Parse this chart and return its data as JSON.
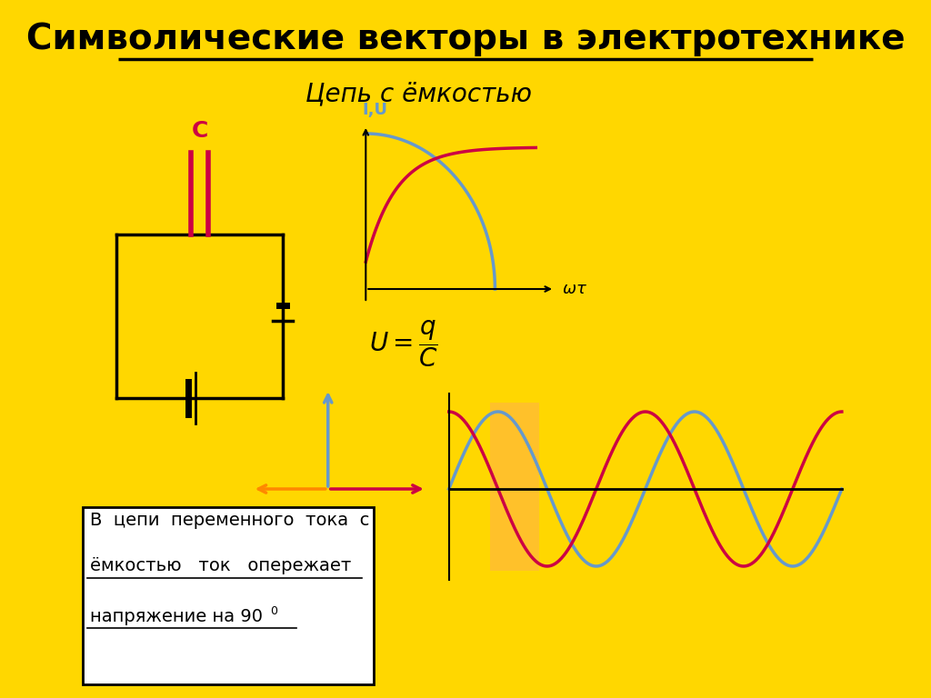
{
  "bg_color": "#FFD700",
  "title": "Символические векторы в электротехнике",
  "title_fontsize": 28,
  "subtitle": "Цепь с ёмкостью",
  "subtitle_fontsize": 20,
  "bottom_text_line1": "В  цепи  переменного  тока  с",
  "bottom_text_line2": "ёмкостью   ток   опережает",
  "bottom_text_line3": "напряжение на 90",
  "bottom_text_superscript": "0",
  "label_C": "C",
  "label_IU": "I,U",
  "label_wt": "$\\omega\\tau$",
  "circuit_color": "#000000",
  "capacitor_color": "#CC0044",
  "battery_color": "#000000",
  "wave_color_current": "#CC0044",
  "wave_color_voltage": "#6699CC",
  "arrow_color_up": "#6699CC",
  "arrow_color_right": "#CC0044",
  "arrow_color_left": "#FF8800",
  "highlight_rect_color": "#FFB347",
  "white_box_color": "#FFFFFF"
}
